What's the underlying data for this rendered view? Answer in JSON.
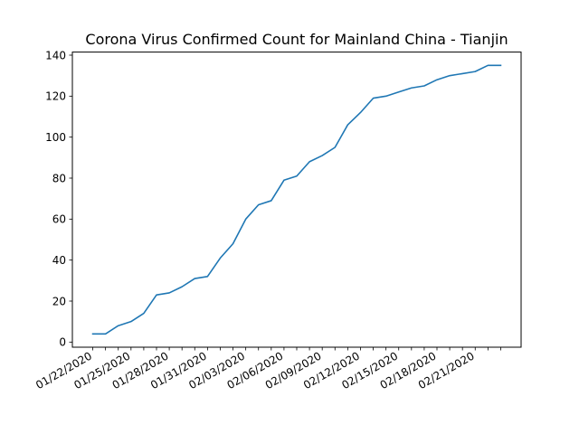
{
  "chart_data": {
    "type": "line",
    "title": "Corona Virus Confirmed Count for Mainland China - Tianjin",
    "xlabel": "",
    "ylabel": "",
    "x": [
      "01/22/2020",
      "01/23/2020",
      "01/24/2020",
      "01/25/2020",
      "01/26/2020",
      "01/27/2020",
      "01/28/2020",
      "01/29/2020",
      "01/30/2020",
      "01/31/2020",
      "02/01/2020",
      "02/02/2020",
      "02/03/2020",
      "02/04/2020",
      "02/05/2020",
      "02/06/2020",
      "02/07/2020",
      "02/08/2020",
      "02/09/2020",
      "02/10/2020",
      "02/11/2020",
      "02/12/2020",
      "02/13/2020",
      "02/14/2020",
      "02/15/2020",
      "02/16/2020",
      "02/17/2020",
      "02/18/2020",
      "02/19/2020",
      "02/20/2020",
      "02/21/2020",
      "02/22/2020",
      "02/23/2020"
    ],
    "values": [
      4,
      4,
      8,
      10,
      14,
      23,
      24,
      27,
      31,
      32,
      41,
      48,
      60,
      67,
      69,
      79,
      81,
      88,
      91,
      95,
      106,
      112,
      119,
      120,
      122,
      124,
      125,
      128,
      130,
      131,
      132,
      135,
      135
    ],
    "x_tick_labels": [
      "01/22/2020",
      "01/25/2020",
      "01/28/2020",
      "01/31/2020",
      "02/03/2020",
      "02/06/2020",
      "02/09/2020",
      "02/12/2020",
      "02/15/2020",
      "02/18/2020",
      "02/21/2020"
    ],
    "x_tick_label_every": 3,
    "y_ticks": [
      0,
      20,
      40,
      60,
      80,
      100,
      120,
      140
    ],
    "ylim": [
      -2.5,
      141.5
    ],
    "line_color": "#1f77b4",
    "grid": false,
    "legend": "none"
  }
}
